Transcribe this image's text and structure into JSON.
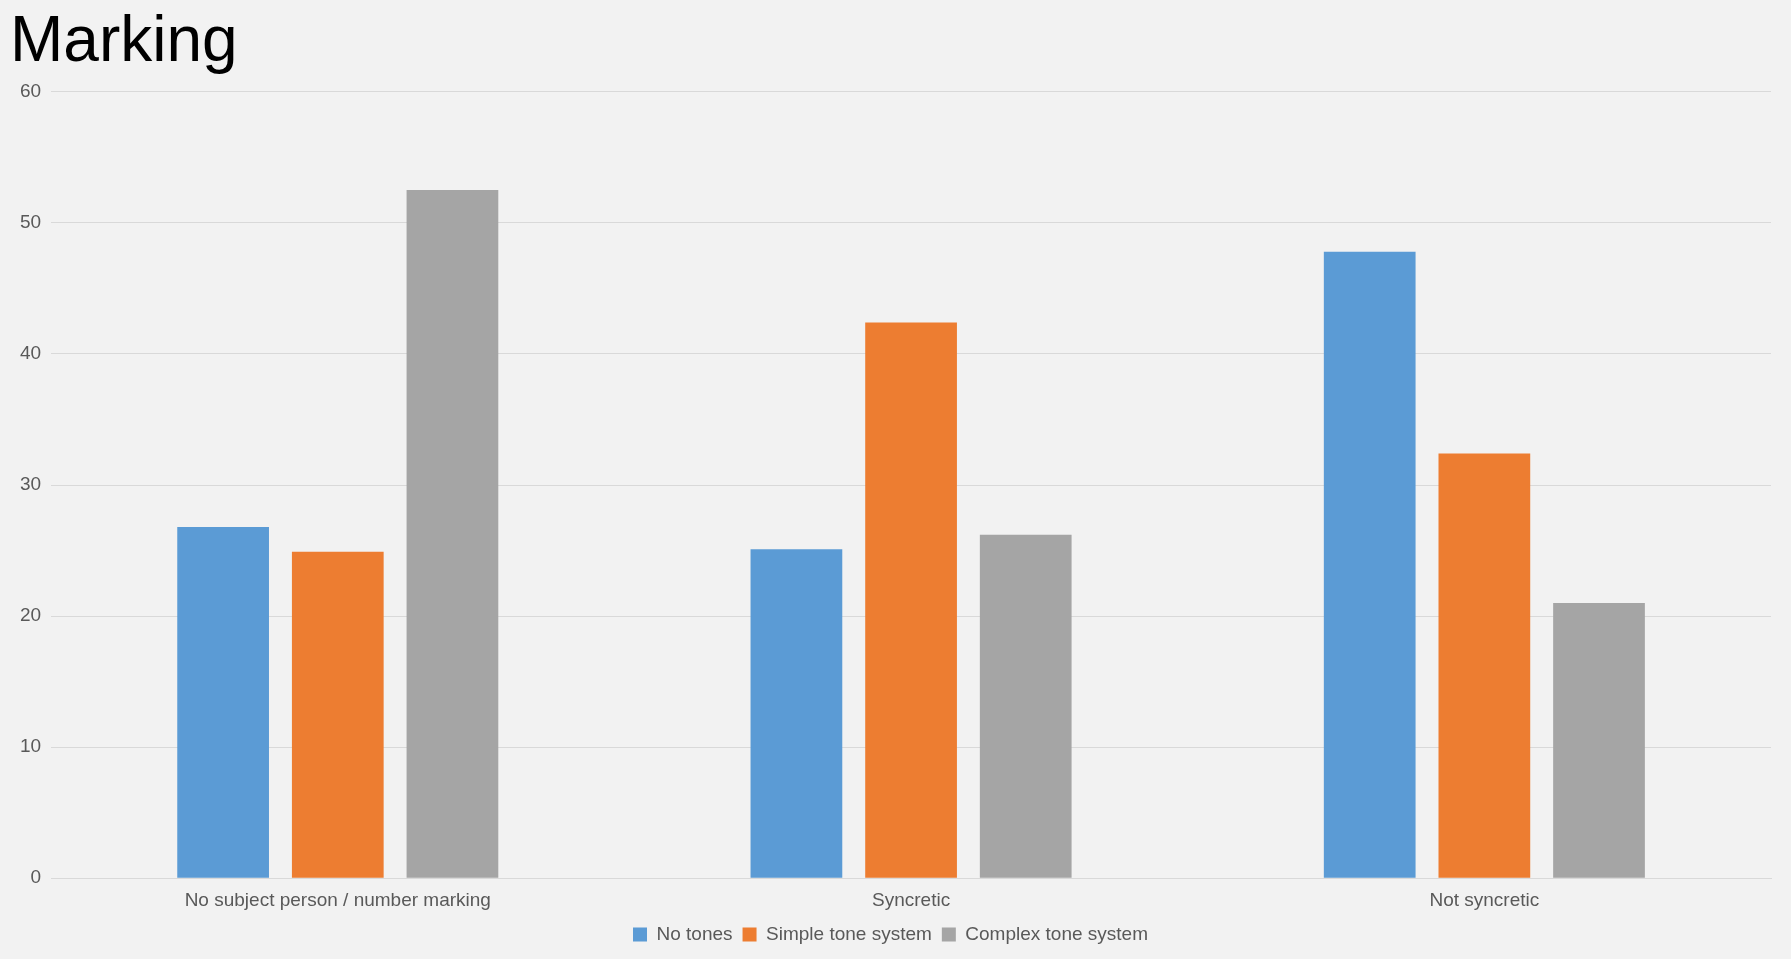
{
  "chart_data": {
    "type": "bar",
    "title": "Marking",
    "categories": [
      "No subject person / number marking",
      "Syncretic",
      "Not syncretic"
    ],
    "series": [
      {
        "name": "No tones",
        "color": "#5b9bd5",
        "values": [
          26.8,
          25.1,
          47.8
        ]
      },
      {
        "name": "Simple tone system",
        "color": "#ed7d31",
        "values": [
          24.9,
          42.4,
          32.4
        ]
      },
      {
        "name": "Complex tone system",
        "color": "#a5a5a5",
        "values": [
          52.5,
          26.2,
          21.0
        ]
      }
    ],
    "ylim": [
      0,
      60
    ],
    "yticks": [
      0,
      10,
      20,
      30,
      40,
      50,
      60
    ],
    "grid": "y",
    "legend": "bottom"
  }
}
